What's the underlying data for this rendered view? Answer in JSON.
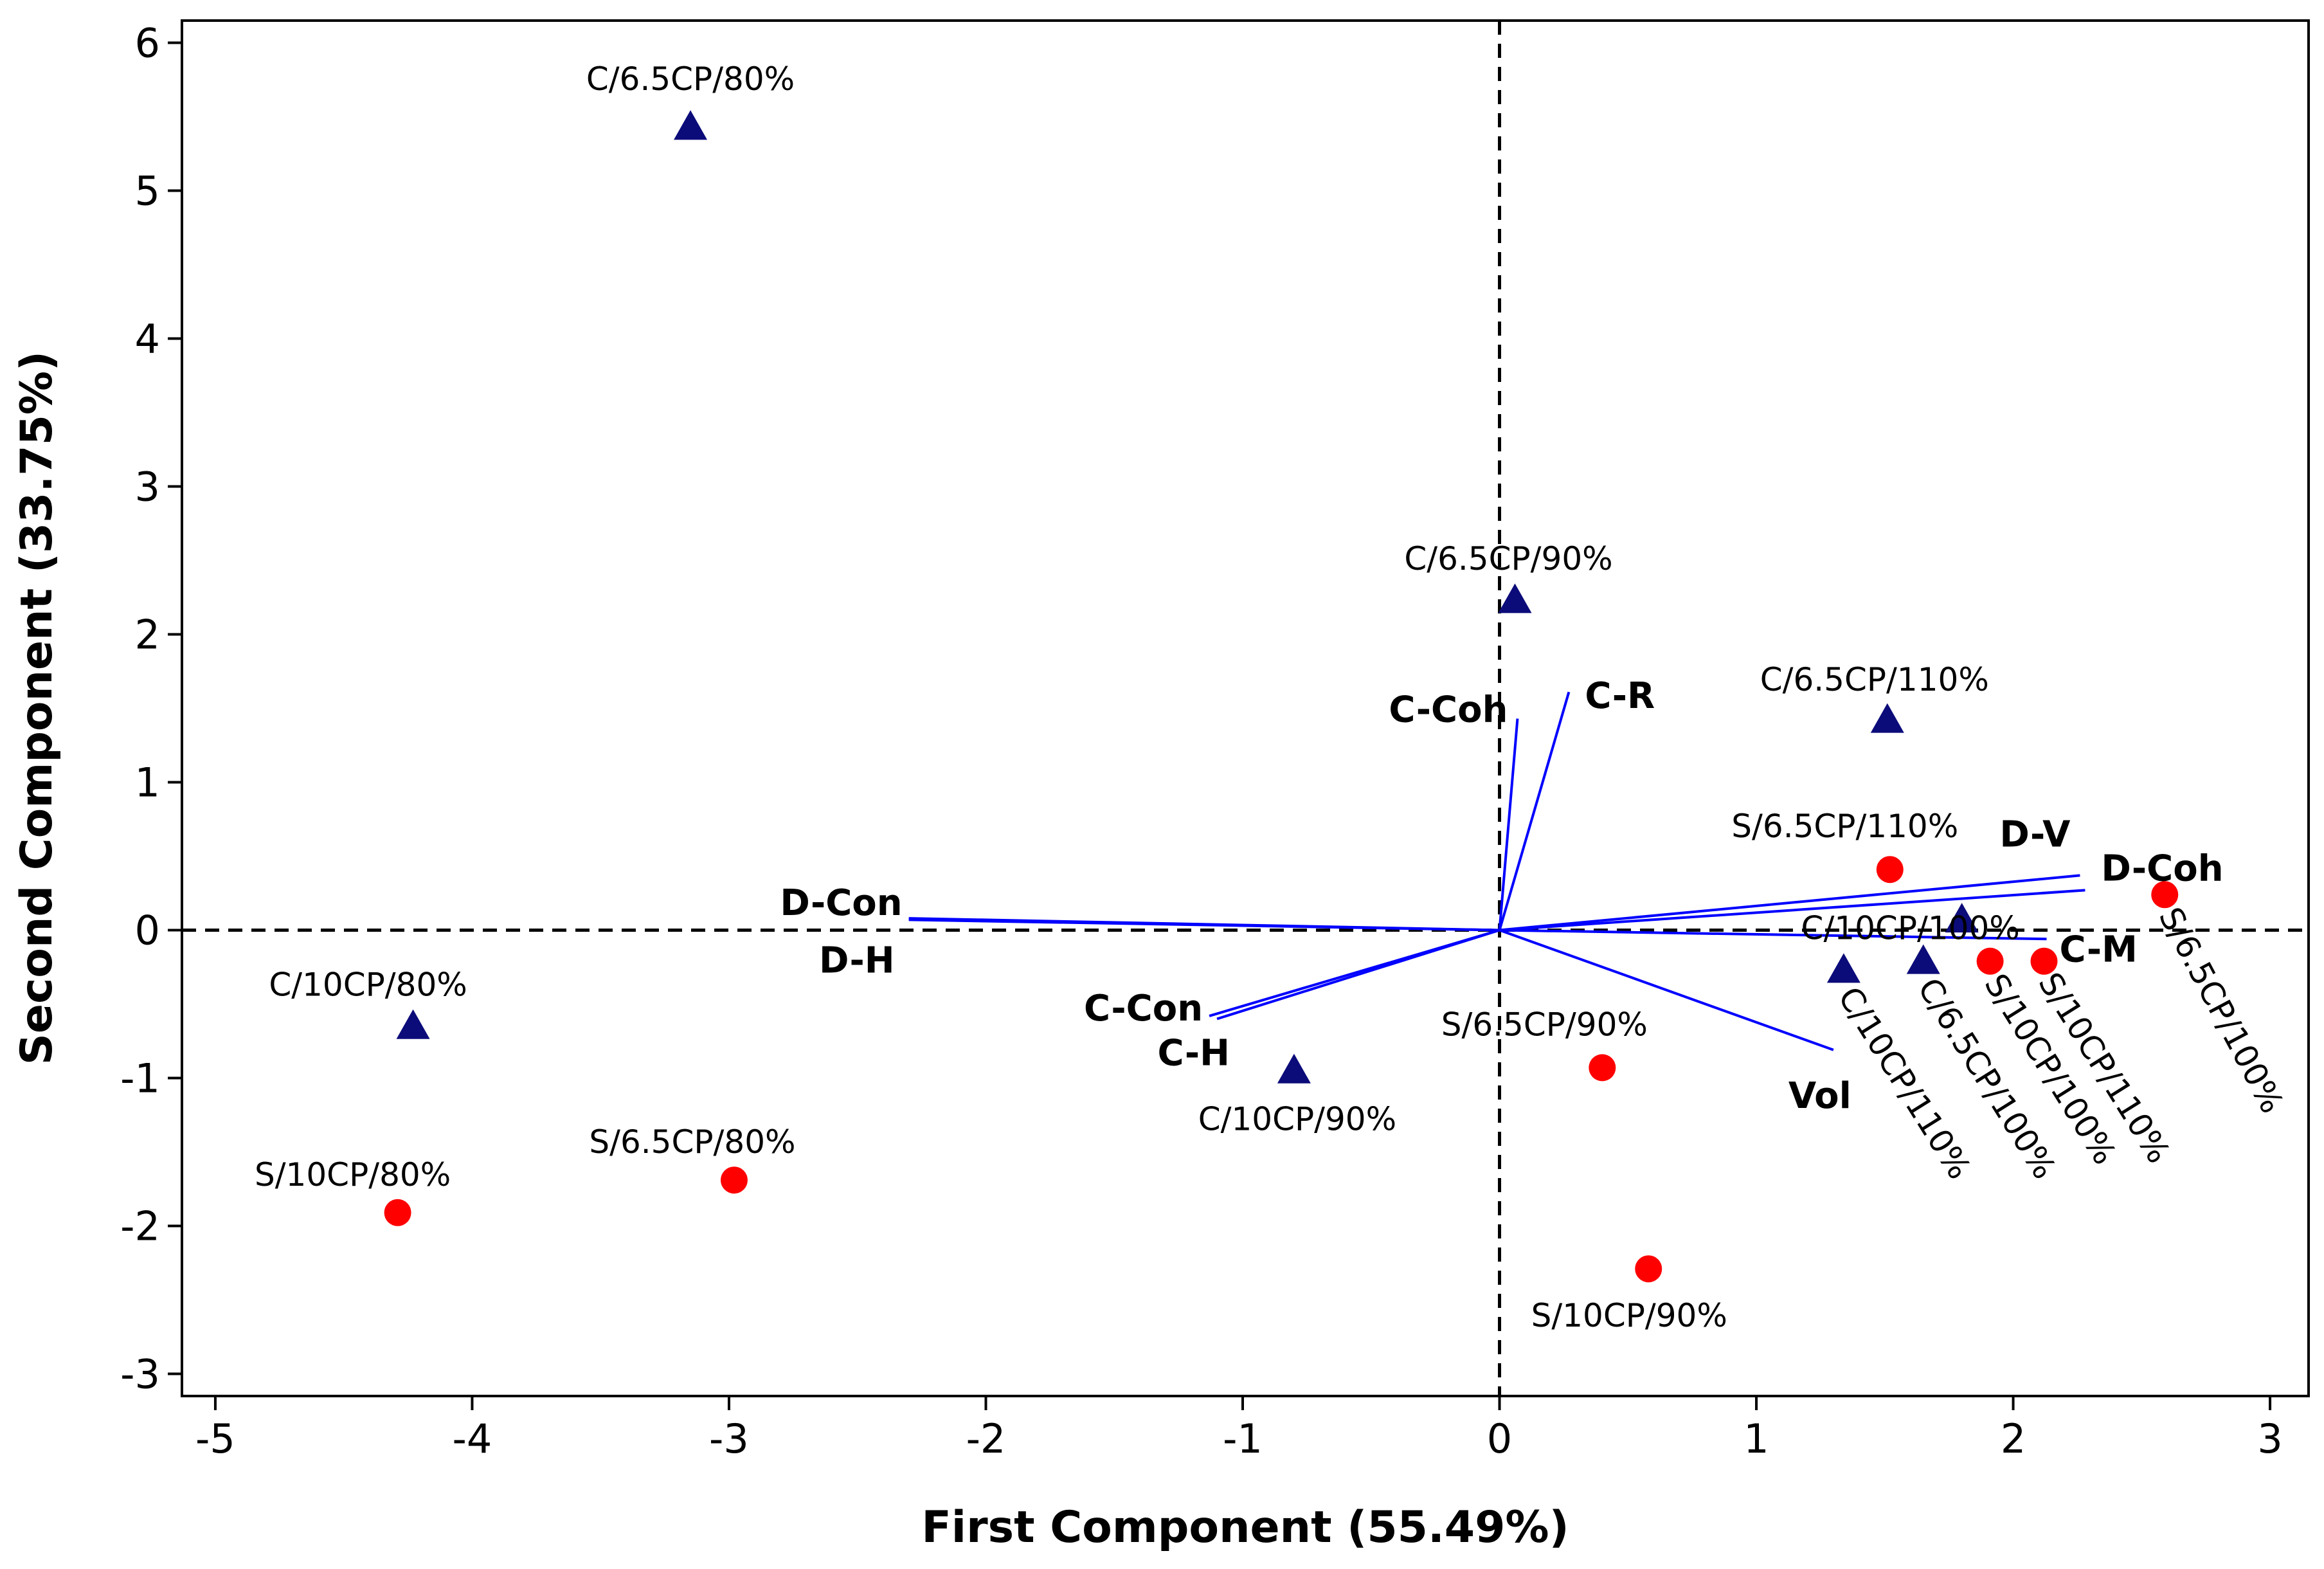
{
  "chart_data": {
    "type": "scatter",
    "title": "",
    "xlabel": "First Component (55.49%)",
    "ylabel": "Second Component (33.75%)",
    "xlim": [
      -5.13,
      3.15
    ],
    "ylim": [
      -3.15,
      6.15
    ],
    "xticks": [
      -5,
      -4,
      -3,
      -2,
      -1,
      0,
      1,
      2,
      3
    ],
    "yticks": [
      -3,
      -2,
      -1,
      0,
      1,
      2,
      3,
      4,
      5,
      6
    ],
    "grid": false,
    "reference_lines": {
      "x": 0,
      "y": 0,
      "style": "dashed"
    },
    "colors": {
      "triangle_series": "#0b0b7a",
      "circle_series": "#ff0000",
      "loading_vectors": "#0000ff"
    },
    "series": [
      {
        "name": "C",
        "marker": "triangle",
        "points": [
          {
            "label": "C/6.5CP/80%",
            "x": -3.15,
            "y": 5.42
          },
          {
            "label": "C/6.5CP/90%",
            "x": 0.06,
            "y": 2.22
          },
          {
            "label": "C/6.5CP/110%",
            "x": 1.51,
            "y": 1.41
          },
          {
            "label": "C/10CP/100%",
            "x": 1.8,
            "y": 0.06
          },
          {
            "label": "C/10CP/110%",
            "x": 1.34,
            "y": -0.28
          },
          {
            "label": "C/6.5CP/100%",
            "x": 1.65,
            "y": -0.22
          },
          {
            "label": "C/10CP/80%",
            "x": -4.23,
            "y": -0.66
          },
          {
            "label": "C/10CP/90%",
            "x": -0.8,
            "y": -0.96
          }
        ]
      },
      {
        "name": "S",
        "marker": "circle",
        "points": [
          {
            "label": "S/6.5CP/110%",
            "x": 1.52,
            "y": 0.41
          },
          {
            "label": "S/6.5CP/100%",
            "x": 2.59,
            "y": 0.24
          },
          {
            "label": "S/10CP/100%",
            "x": 1.91,
            "y": -0.21
          },
          {
            "label": "S/10CP/110%",
            "x": 2.12,
            "y": -0.21
          },
          {
            "label": "S/6.5CP/90%",
            "x": 0.4,
            "y": -0.93
          },
          {
            "label": "S/6.5CP/80%",
            "x": -2.98,
            "y": -1.69
          },
          {
            "label": "S/10CP/80%",
            "x": -4.29,
            "y": -1.91
          },
          {
            "label": "S/10CP/90%",
            "x": 0.58,
            "y": -2.29
          }
        ]
      }
    ],
    "loadings": [
      {
        "label": "C-Coh",
        "x": 0.07,
        "y": 1.43
      },
      {
        "label": "C-R",
        "x": 0.27,
        "y": 1.61
      },
      {
        "label": "D-V",
        "x": 2.26,
        "y": 0.37
      },
      {
        "label": "D-Coh",
        "x": 2.28,
        "y": 0.27
      },
      {
        "label": "C-M",
        "x": 2.13,
        "y": -0.06
      },
      {
        "label": "Vol",
        "x": 1.3,
        "y": -0.81
      },
      {
        "label": "D-Con",
        "x": -2.3,
        "y": 0.08
      },
      {
        "label": "D-H",
        "x": -2.3,
        "y": 0.07
      },
      {
        "label": "C-Con",
        "x": -1.13,
        "y": -0.58
      },
      {
        "label": "C-H",
        "x": -1.1,
        "y": -0.6
      }
    ]
  }
}
